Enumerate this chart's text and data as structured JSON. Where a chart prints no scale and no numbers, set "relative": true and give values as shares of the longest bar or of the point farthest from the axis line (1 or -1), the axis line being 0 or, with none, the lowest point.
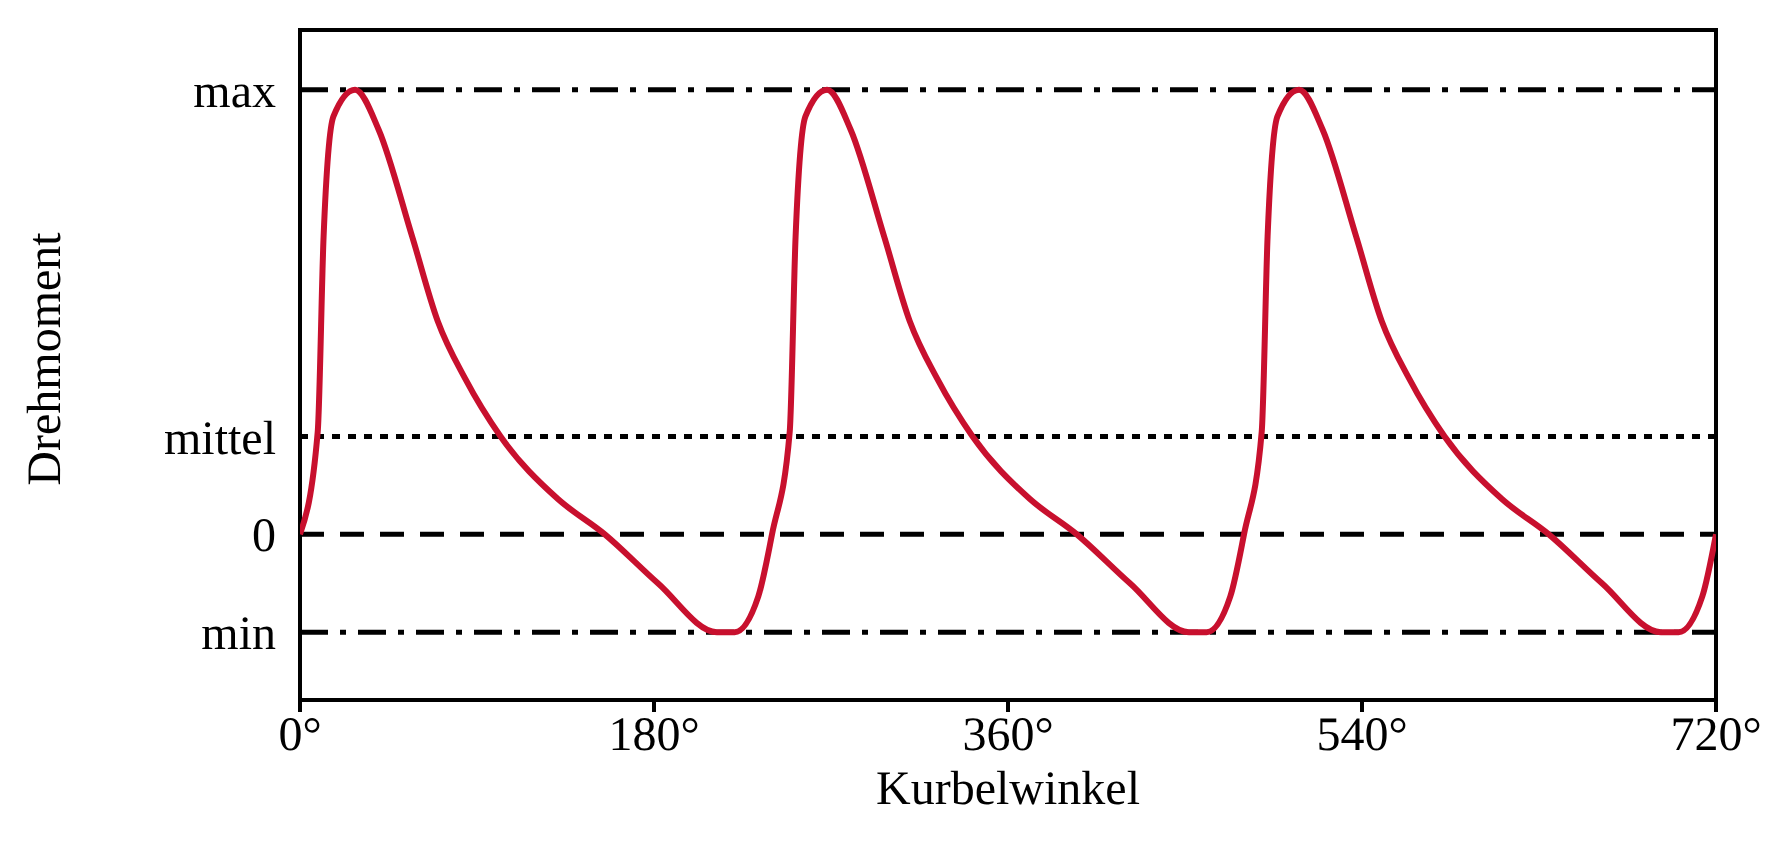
{
  "chart_data": {
    "type": "line",
    "xlabel": "Kurbelwinkel",
    "ylabel": "Drehmoment",
    "relative": true,
    "x": [
      0,
      9,
      12,
      17,
      28,
      40,
      57,
      70,
      84,
      102,
      131,
      155,
      182,
      212,
      221,
      233,
      240,
      249,
      252,
      257,
      268,
      280,
      297,
      310,
      324,
      342,
      371,
      395,
      422,
      452,
      461,
      473,
      480,
      489,
      492,
      497,
      508,
      520,
      537,
      550,
      564,
      582,
      611,
      635,
      662,
      692,
      701,
      713,
      720
    ],
    "series": [
      {
        "color": "#c8102e",
        "values": [
          0,
          0.23,
          0.67,
          0.94,
          1,
          0.91,
          0.67,
          0.48,
          0.35,
          0.22,
          0.08,
          0,
          -0.11,
          -0.22,
          -0.22,
          -0.14,
          0,
          0.23,
          0.67,
          0.94,
          1,
          0.91,
          0.67,
          0.48,
          0.35,
          0.22,
          0.08,
          0,
          -0.11,
          -0.22,
          -0.22,
          -0.14,
          0,
          0.23,
          0.67,
          0.94,
          1,
          0.91,
          0.67,
          0.48,
          0.35,
          0.22,
          0.08,
          0,
          -0.11,
          -0.22,
          -0.22,
          -0.14,
          0
        ]
      }
    ],
    "xlim": [
      0,
      720
    ],
    "xticks": [
      {
        "value": 0,
        "label": "0°"
      },
      {
        "value": 180,
        "label": "180°"
      },
      {
        "value": 360,
        "label": "360°"
      },
      {
        "value": 540,
        "label": "540°"
      },
      {
        "value": 720,
        "label": "720°"
      }
    ],
    "ref_lines": [
      {
        "axis": "y",
        "value": 1,
        "label": "max",
        "color": "#000000",
        "line_style": "dashdot"
      },
      {
        "axis": "y",
        "value": 0.22,
        "label": "mittel",
        "color": "#000000",
        "line_style": "dotted"
      },
      {
        "axis": "y",
        "value": 0,
        "label": "0",
        "color": "#000000",
        "line_style": "dashed"
      },
      {
        "axis": "y",
        "value": -0.22,
        "label": "min",
        "color": "#000000",
        "line_style": "dashdot"
      }
    ],
    "grid": false,
    "legend": false,
    "marker": "none",
    "line_style": "solid"
  }
}
